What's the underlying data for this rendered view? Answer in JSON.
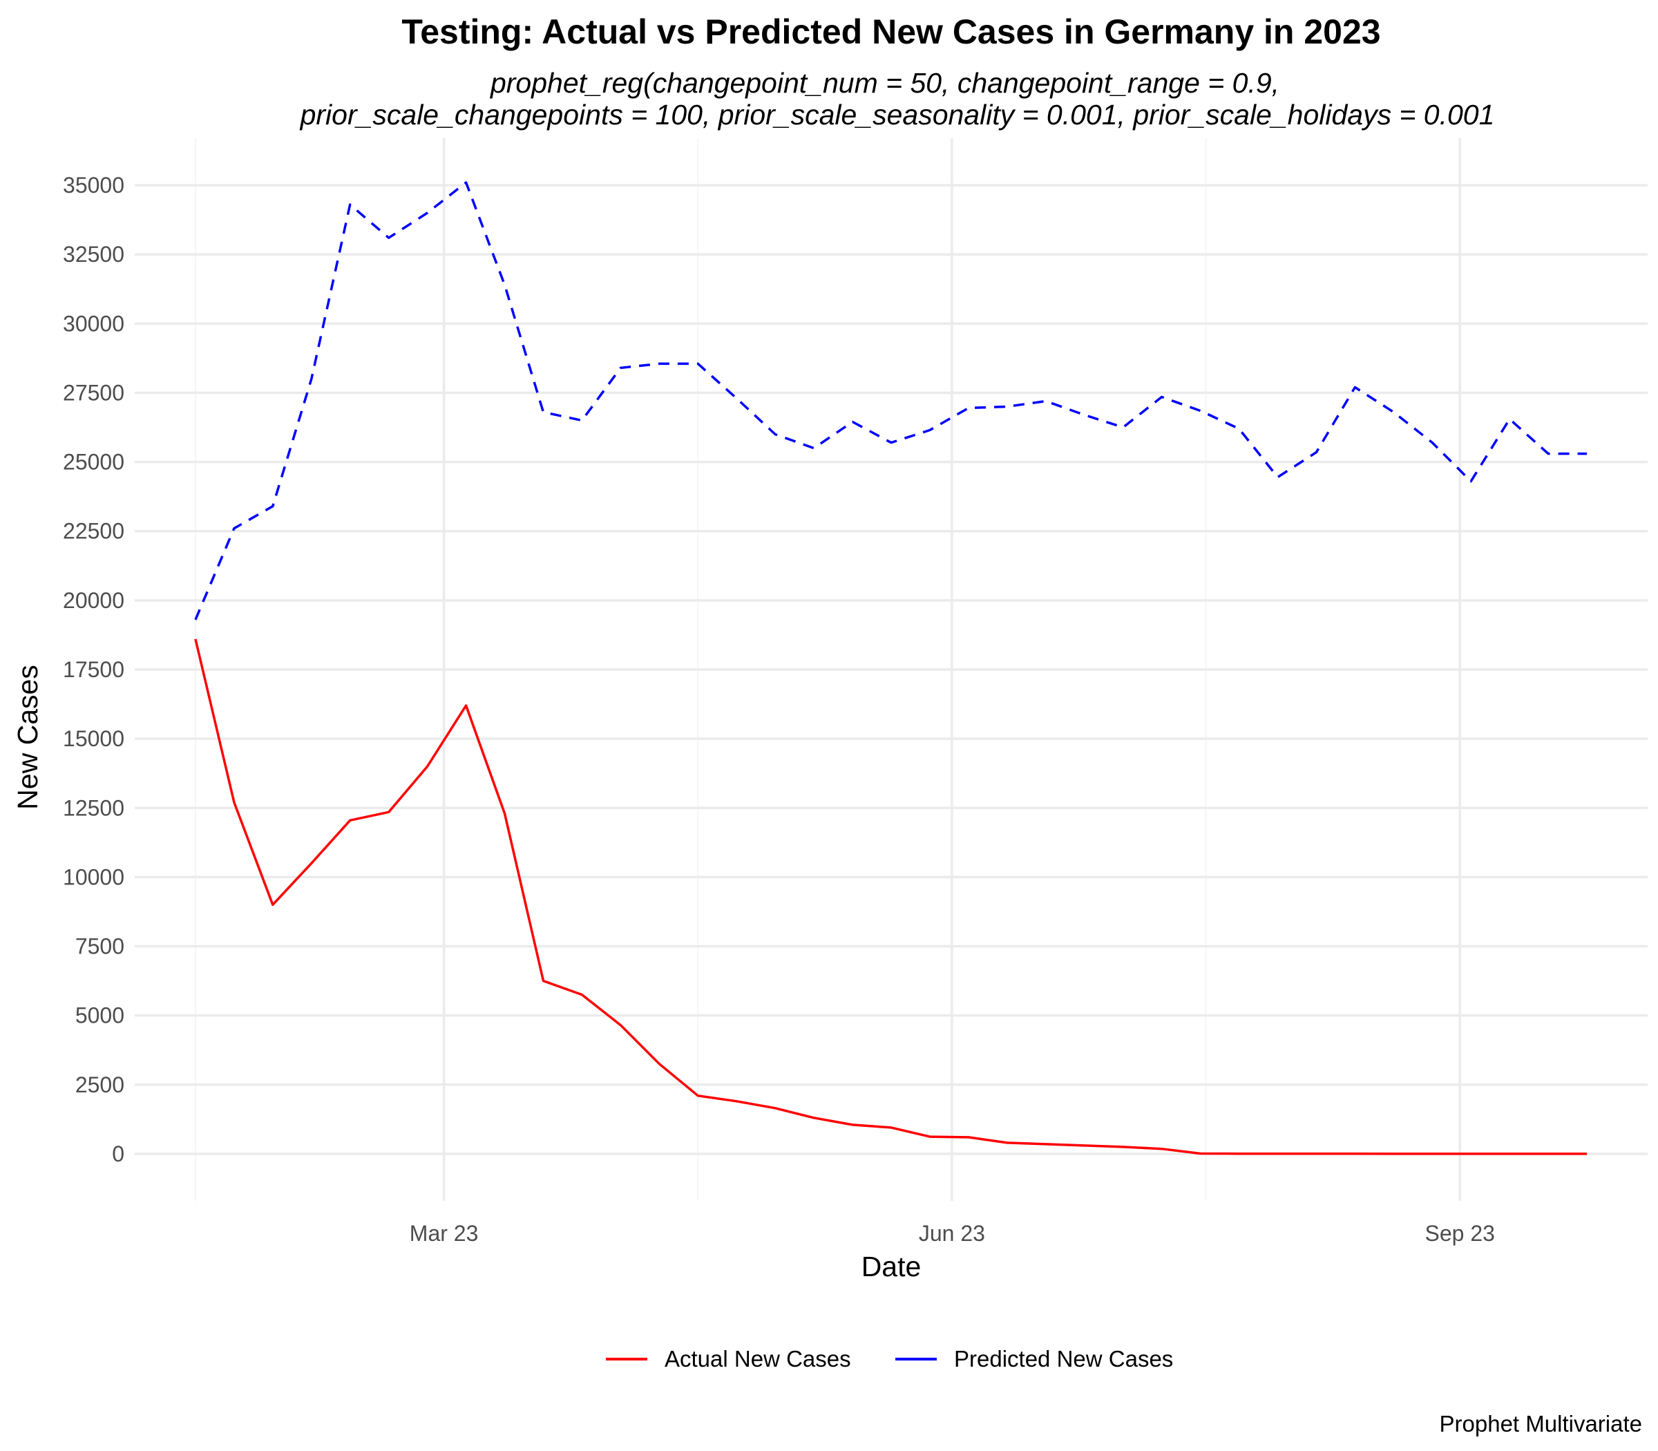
{
  "chart_data": {
    "type": "line",
    "title": "Testing: Actual vs Predicted New Cases in Germany in 2023",
    "subtitle_lines": [
      "prophet_reg(changepoint_num = 50, changepoint_range = 0.9,",
      "prior_scale_changepoints = 100, prior_scale_seasonality = 0.001, prior_scale_holidays = 0.001"
    ],
    "xlabel": "Date",
    "ylabel": "New Cases",
    "caption": "Prophet Multivariate",
    "x_ticks": [
      {
        "label": "Mar 23",
        "date": "2023-03-01"
      },
      {
        "label": "Jun 23",
        "date": "2023-06-01"
      },
      {
        "label": "Sep 23",
        "date": "2023-09-01"
      }
    ],
    "y_ticks": [
      0,
      2500,
      5000,
      7500,
      10000,
      12500,
      15000,
      17500,
      20000,
      22500,
      25000,
      27500,
      30000,
      32500,
      35000
    ],
    "xlim": [
      "2023-01-04",
      "2023-10-05"
    ],
    "ylim": [
      -1700,
      36700
    ],
    "grid": true,
    "legend_position": "bottom",
    "x": [
      "2023-01-15",
      "2023-01-22",
      "2023-01-29",
      "2023-02-05",
      "2023-02-12",
      "2023-02-19",
      "2023-02-26",
      "2023-03-05",
      "2023-03-12",
      "2023-03-19",
      "2023-03-26",
      "2023-04-02",
      "2023-04-09",
      "2023-04-16",
      "2023-04-23",
      "2023-04-30",
      "2023-05-07",
      "2023-05-14",
      "2023-05-21",
      "2023-05-28",
      "2023-06-04",
      "2023-06-11",
      "2023-06-18",
      "2023-06-25",
      "2023-07-02",
      "2023-07-09",
      "2023-07-16",
      "2023-07-23",
      "2023-07-30",
      "2023-08-06",
      "2023-08-13",
      "2023-08-20",
      "2023-08-27",
      "2023-09-03",
      "2023-09-10",
      "2023-09-17",
      "2023-09-24"
    ],
    "series": [
      {
        "name": "Actual New Cases",
        "color": "#ff0000",
        "dash": "solid",
        "values": [
          18600,
          12700,
          9000,
          10500,
          12050,
          12350,
          14000,
          16200,
          12300,
          6250,
          5750,
          4650,
          3250,
          2100,
          1900,
          1650,
          1300,
          1050,
          950,
          620,
          600,
          400,
          350,
          300,
          250,
          180,
          10,
          5,
          3,
          2,
          2,
          1,
          1,
          0,
          0,
          0,
          0
        ]
      },
      {
        "name": "Predicted New Cases",
        "color": "#0000ff",
        "dash": "dashed",
        "values": [
          19300,
          22600,
          23400,
          28000,
          34300,
          33100,
          34000,
          35100,
          31400,
          26800,
          26500,
          28400,
          28550,
          28550,
          27300,
          26000,
          25500,
          26450,
          25700,
          26150,
          26950,
          27000,
          27200,
          26700,
          26250,
          27350,
          26850,
          26200,
          24450,
          25350,
          27700,
          26800,
          25700,
          24300,
          26550,
          25300,
          25300
        ]
      }
    ]
  }
}
